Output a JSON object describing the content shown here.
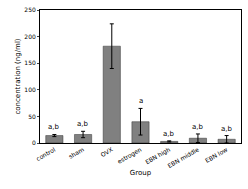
{
  "chart_data": {
    "type": "bar",
    "x_label": "Group",
    "y_label": "concentration (ng/ml)",
    "categories": [
      "control",
      "sham",
      "OVX",
      "estrogen",
      "EBN high",
      "EBN middle",
      "EBN low"
    ],
    "values": [
      14,
      16,
      182,
      40,
      3,
      9,
      7
    ],
    "errors": [
      2,
      6,
      42,
      25,
      1,
      8,
      7
    ],
    "annotations": [
      "a,b",
      "a,b",
      null,
      "a",
      "a,b",
      "a,b",
      "a,b"
    ],
    "color": "#808080",
    "ylim": [
      0,
      250
    ],
    "yticks": [
      0,
      50,
      100,
      150,
      200,
      250
    ],
    "grid": false
  }
}
